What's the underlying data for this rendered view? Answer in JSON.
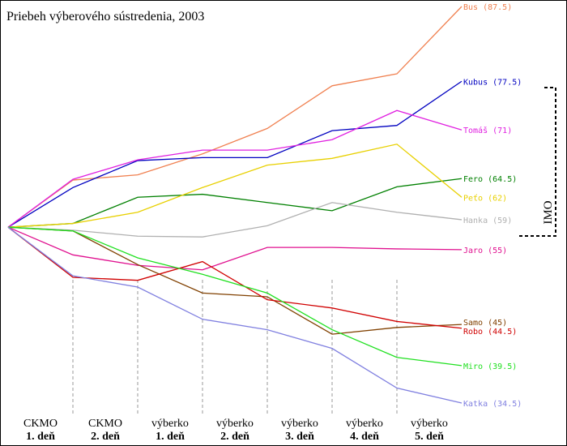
{
  "chart_data": {
    "type": "line",
    "title": "Priebeh výberového sústredenia, 2003",
    "columns": [
      {
        "line1": "CKMO",
        "line2": "1. deň"
      },
      {
        "line1": "CKMO",
        "line2": "2. deň"
      },
      {
        "line1": "výberko",
        "line2": "1. deň"
      },
      {
        "line1": "výberko",
        "line2": "2. deň"
      },
      {
        "line1": "výberko",
        "line2": "3. deň"
      },
      {
        "line1": "výberko",
        "line2": "4. deň"
      },
      {
        "line1": "výberko",
        "line2": "5. deň"
      }
    ],
    "annotation": "IMO",
    "series": [
      {
        "name": "Bus",
        "color": "#f08050",
        "values": [
          58,
          64.3,
          65.0,
          67.8,
          71.2,
          76.9,
          78.5,
          87.5
        ],
        "end_label": "(87.5)"
      },
      {
        "name": "Kubus",
        "color": "#0000c0",
        "values": [
          58,
          63.3,
          66.9,
          67.3,
          67.3,
          70.9,
          71.6,
          77.5
        ],
        "end_label": "(77.5)"
      },
      {
        "name": "Tomáš",
        "color": "#e020e0",
        "values": [
          58,
          64.4,
          67.0,
          68.3,
          68.3,
          69.7,
          73.6,
          71
        ],
        "end_label": "(71)"
      },
      {
        "name": "Fero",
        "color": "#008000",
        "values": [
          58,
          58.5,
          62.0,
          62.4,
          61.3,
          60.2,
          63.4,
          64.5
        ],
        "end_label": "(64.5)"
      },
      {
        "name": "Peťo",
        "color": "#e8d000",
        "values": [
          58,
          58.5,
          60.0,
          63.3,
          66.3,
          67.2,
          69.1,
          62
        ],
        "end_label": "(62)"
      },
      {
        "name": "Hanka",
        "color": "#b0b0b0",
        "values": [
          58,
          57.6,
          56.8,
          56.7,
          58.2,
          61.3,
          60.0,
          59
        ],
        "end_label": "(59)"
      },
      {
        "name": "Jaro",
        "color": "#e0108f",
        "values": [
          58,
          54.3,
          52.9,
          52.3,
          55.3,
          55.3,
          55.1,
          55
        ],
        "end_label": "(55)"
      },
      {
        "name": "Samo",
        "color": "#804000",
        "values": [
          58,
          57.5,
          53.0,
          49.2,
          48.7,
          43.7,
          44.6,
          45
        ],
        "end_label": "(45)"
      },
      {
        "name": "Robo",
        "color": "#d00000",
        "values": [
          58,
          51.3,
          50.9,
          53.4,
          48.3,
          47.2,
          45.4,
          44.5
        ],
        "end_label": "(44.5)"
      },
      {
        "name": "Miro",
        "color": "#20e020",
        "values": [
          58,
          57.5,
          53.9,
          51.7,
          49.2,
          44.3,
          40.6,
          39.5
        ],
        "end_label": "(39.5)"
      },
      {
        "name": "Katka",
        "color": "#8080e0",
        "values": [
          58,
          51.5,
          50.0,
          45.7,
          44.3,
          41.8,
          36.5,
          34.5
        ],
        "end_label": "(34.5)"
      }
    ]
  }
}
